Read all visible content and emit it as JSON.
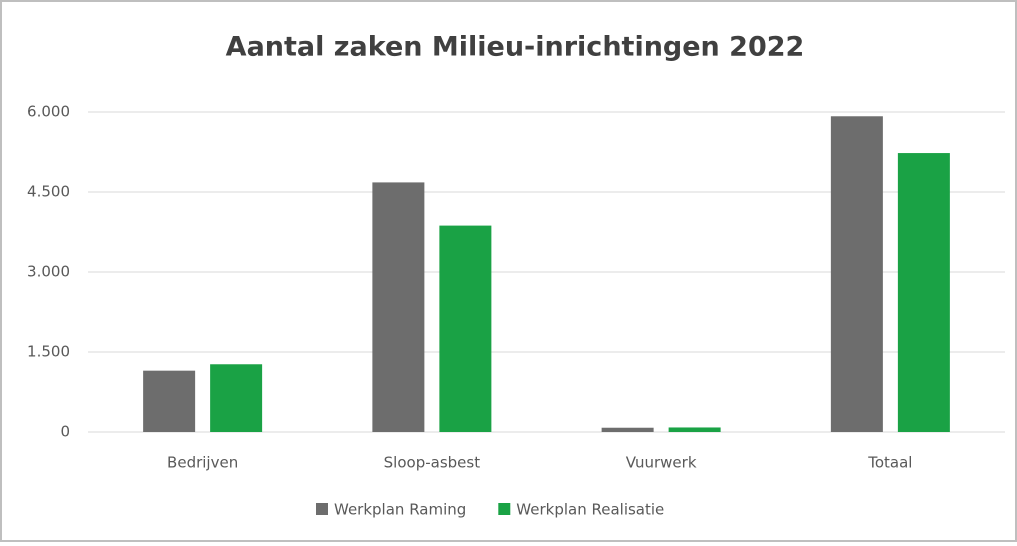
{
  "chart_data": {
    "type": "bar",
    "title": "Aantal zaken Milieu-inrichtingen 2022",
    "categories": [
      "Bedrijven",
      "Sloop-asbest",
      "Vuurwerk",
      "Totaal"
    ],
    "series": [
      {
        "name": "Werkplan Raming",
        "color": "#6d6d6d",
        "values": [
          1150,
          4680,
          80,
          5920
        ]
      },
      {
        "name": "Werkplan Realisatie",
        "color": "#1aa245",
        "values": [
          1270,
          3870,
          85,
          5230
        ]
      }
    ],
    "ylim": [
      0,
      6000
    ],
    "yticks": [
      0,
      {
        "value": 1500,
        "label": "1.500"
      },
      {
        "value": 3000,
        "label": "3.000"
      },
      {
        "value": 4500,
        "label": "4.500"
      },
      {
        "value": 6000,
        "label": "6.000"
      }
    ],
    "grid": true,
    "legend": "bottom"
  }
}
